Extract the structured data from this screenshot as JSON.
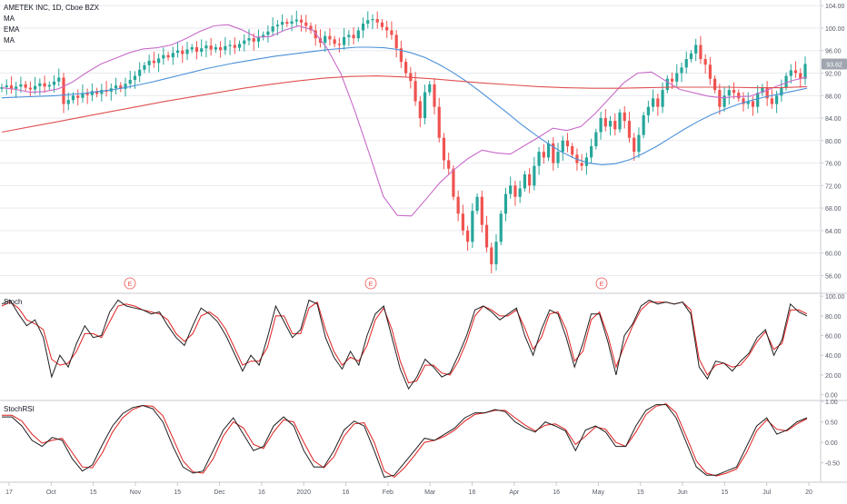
{
  "chart_data": {
    "type": "candlestick",
    "title": "AMETEK INC, 1D, Cboe BZX",
    "indicator_labels": [
      "MA",
      "EMA",
      "MA"
    ],
    "last_price_label": "93.62",
    "earnings_marker": "E",
    "x_tick_labels": [
      "17",
      "Oct",
      "15",
      "Nov",
      "15",
      "Dec",
      "16",
      "2020",
      "16",
      "Feb",
      "Mar",
      "16",
      "Apr",
      "16",
      "May",
      "15",
      "Jun",
      "15",
      "Jul",
      "20"
    ],
    "price_axis": {
      "range": [
        53,
        105
      ],
      "ticks": [
        "104.00",
        "100.00",
        "96.00",
        "92.00",
        "88.00",
        "84.00",
        "80.00",
        "76.00",
        "72.00",
        "68.00",
        "64.00",
        "60.00",
        "56.00"
      ]
    },
    "price_close": [
      89.5,
      89.8,
      89.2,
      89.6,
      90.0,
      89.4,
      89.1,
      89.7,
      90.2,
      89.6,
      89.9,
      90.5,
      91.2,
      86.5,
      87.2,
      88.0,
      87.6,
      88.4,
      88.1,
      88.8,
      88.3,
      89.0,
      88.7,
      89.3,
      89.8,
      89.2,
      90.1,
      90.8,
      91.5,
      92.6,
      93.4,
      94.2,
      93.8,
      94.6,
      95.2,
      94.8,
      95.6,
      96.0,
      95.4,
      96.2,
      96.6,
      95.8,
      96.4,
      96.9,
      96.2,
      96.6,
      96.1,
      96.8,
      97.0,
      96.5,
      97.2,
      97.8,
      98.2,
      97.6,
      98.4,
      98.8,
      99.4,
      100.3,
      100.6,
      101.1,
      100.8,
      101.2,
      101.5,
      101.0,
      100.4,
      99.6,
      98.2,
      97.4,
      98.6,
      98.0,
      97.2,
      97.0,
      98.4,
      98.8,
      98.2,
      99.6,
      100.8,
      101.4,
      101.6,
      101.0,
      100.2,
      99.6,
      98.8,
      96.4,
      94.0,
      92.0,
      90.6,
      87.0,
      84.0,
      88.6,
      90.0,
      86.0,
      80.5,
      76.5,
      75.0,
      70.0,
      67.0,
      64.0,
      62.0,
      67.5,
      70.0,
      65.0,
      61.0,
      58.0,
      62.0,
      67.0,
      70.5,
      72.0,
      70.0,
      71.5,
      74.0,
      72.0,
      75.5,
      78.0,
      77.0,
      79.5,
      76.0,
      78.0,
      80.0,
      79.0,
      77.5,
      76.0,
      75.5,
      77.0,
      79.0,
      81.5,
      84.0,
      82.5,
      83.5,
      82.0,
      85.0,
      83.5,
      80.5,
      78.0,
      81.0,
      84.5,
      86.0,
      87.5,
      86.0,
      89.0,
      91.0,
      90.5,
      92.0,
      93.0,
      94.5,
      95.5,
      97.0,
      94.5,
      93.5,
      91.0,
      89.0,
      86.0,
      88.0,
      89.0,
      88.5,
      87.5,
      86.5,
      87.0,
      86.0,
      88.5,
      89.5,
      87.5,
      86.5,
      88.0,
      89.5,
      91.5,
      92.5,
      92.0,
      91.0,
      93.62
    ],
    "series": [
      {
        "name": "MA",
        "values": [
          87.6,
          87.7,
          87.8,
          87.9,
          88.0,
          88.2,
          88.4,
          88.7,
          89.0,
          89.4,
          89.9,
          90.4,
          91.0,
          91.6,
          92.2,
          92.8,
          93.3,
          93.8,
          94.2,
          94.6,
          95.0,
          95.3,
          95.6,
          95.9,
          96.2,
          96.4,
          96.6,
          96.6,
          96.5,
          96.2,
          95.6,
          94.8,
          93.6,
          92.2,
          90.6,
          88.8,
          86.9,
          85.0,
          83.0,
          81.2,
          79.5,
          78.0,
          76.8,
          76.0,
          75.7,
          75.9,
          76.6,
          77.7,
          79.0,
          80.5,
          82.0,
          83.4,
          84.6,
          85.6,
          86.5,
          87.2,
          87.8,
          88.3,
          88.8,
          89.3
        ]
      },
      {
        "name": "EMA",
        "values": [
          89.4,
          89.1,
          88.6,
          88.7,
          89.2,
          90.4,
          92.1,
          93.6,
          94.6,
          95.6,
          96.3,
          96.5,
          97.0,
          98.1,
          99.4,
          100.4,
          100.6,
          99.7,
          98.4,
          98.5,
          99.6,
          100.4,
          99.7,
          96.5,
          91.9,
          85.2,
          77.8,
          70.1,
          66.7,
          66.6,
          69.5,
          72.5,
          74.8,
          76.8,
          78.3,
          77.8,
          77.6,
          79.1,
          80.6,
          82.2,
          81.8,
          82.5,
          84.8,
          87.5,
          90.2,
          92.0,
          92.2,
          90.6,
          89.1,
          88.5,
          87.9,
          87.6,
          87.8,
          87.9,
          88.8,
          89.8,
          90.7,
          91.3
        ]
      },
      {
        "name": "MA",
        "values": [
          81.5,
          82.4,
          83.3,
          84.2,
          85.1,
          86.0,
          86.9,
          87.7,
          88.5,
          89.3,
          90.0,
          90.6,
          91.1,
          91.4,
          91.5,
          91.3,
          91.0,
          90.6,
          90.2,
          89.9,
          89.6,
          89.4,
          89.3,
          89.3,
          89.4,
          89.5,
          89.5,
          89.5,
          89.4,
          89.4,
          89.6
        ]
      }
    ],
    "stoch": {
      "label": "Stoch",
      "range": [
        -5,
        102
      ],
      "ticks": [
        "100.00",
        "80.00",
        "60.00",
        "40.00",
        "20.00",
        "0.00"
      ],
      "k": [
        92,
        96,
        82,
        70,
        76,
        58,
        18,
        40,
        28,
        52,
        70,
        58,
        60,
        84,
        96,
        90,
        88,
        86,
        82,
        84,
        70,
        58,
        50,
        70,
        88,
        82,
        74,
        60,
        42,
        24,
        40,
        30,
        58,
        90,
        74,
        58,
        66,
        96,
        92,
        58,
        38,
        26,
        44,
        30,
        60,
        82,
        90,
        58,
        26,
        6,
        18,
        36,
        28,
        18,
        22,
        40,
        60,
        86,
        90,
        84,
        76,
        82,
        88,
        60,
        40,
        66,
        86,
        82,
        58,
        28,
        52,
        82,
        82,
        54,
        20,
        60,
        72,
        90,
        96,
        92,
        94,
        92,
        94,
        82,
        28,
        16,
        34,
        32,
        24,
        34,
        42,
        58,
        66,
        40,
        56,
        92,
        84,
        80
      ],
      "d": [
        90,
        94,
        88,
        76,
        72,
        66,
        36,
        30,
        32,
        44,
        62,
        62,
        58,
        74,
        90,
        92,
        90,
        86,
        84,
        82,
        76,
        62,
        54,
        62,
        80,
        84,
        78,
        66,
        48,
        30,
        34,
        34,
        48,
        80,
        80,
        62,
        62,
        88,
        94,
        66,
        44,
        30,
        38,
        34,
        50,
        76,
        88,
        66,
        34,
        12,
        14,
        30,
        30,
        22,
        20,
        34,
        54,
        80,
        90,
        86,
        80,
        80,
        86,
        68,
        46,
        58,
        82,
        84,
        66,
        34,
        44,
        76,
        84,
        60,
        28,
        50,
        70,
        86,
        94,
        94,
        94,
        92,
        94,
        86,
        36,
        20,
        30,
        32,
        28,
        30,
        40,
        54,
        64,
        46,
        52,
        86,
        86,
        82
      ]
    },
    "stoch_rsi": {
      "label": "StochRSI",
      "range": [
        -0.95,
        1.0
      ],
      "ticks": [
        "1.00",
        "0.50",
        "0.00",
        "-0.50"
      ],
      "k": [
        0.62,
        0.62,
        0.4,
        0.05,
        -0.1,
        0.12,
        0.05,
        -0.4,
        -0.7,
        -0.55,
        -0.05,
        0.4,
        0.7,
        0.85,
        0.9,
        0.82,
        0.5,
        -0.1,
        -0.6,
        -0.75,
        -0.7,
        -0.2,
        0.3,
        0.6,
        0.2,
        -0.2,
        -0.1,
        0.4,
        0.62,
        0.4,
        -0.2,
        -0.6,
        -0.6,
        -0.2,
        0.3,
        0.52,
        0.4,
        -0.2,
        -0.85,
        -0.8,
        -0.5,
        -0.2,
        0.1,
        0.05,
        0.2,
        0.35,
        0.6,
        0.72,
        0.72,
        0.8,
        0.75,
        0.5,
        0.35,
        0.25,
        0.5,
        0.4,
        0.28,
        -0.2,
        0.3,
        0.4,
        0.25,
        -0.1,
        -0.1,
        0.4,
        0.78,
        0.92,
        0.92,
        0.6,
        0.0,
        -0.6,
        -0.8,
        -0.8,
        -0.7,
        -0.6,
        -0.1,
        0.4,
        0.6,
        0.2,
        0.3,
        0.5,
        0.6
      ],
      "d": [
        0.66,
        0.66,
        0.52,
        0.2,
        -0.02,
        0.05,
        0.1,
        -0.25,
        -0.6,
        -0.62,
        -0.25,
        0.25,
        0.6,
        0.8,
        0.9,
        0.88,
        0.65,
        0.1,
        -0.45,
        -0.72,
        -0.75,
        -0.4,
        0.15,
        0.5,
        0.35,
        -0.05,
        -0.15,
        0.25,
        0.55,
        0.5,
        0.0,
        -0.45,
        -0.62,
        -0.35,
        0.15,
        0.45,
        0.48,
        0.0,
        -0.7,
        -0.85,
        -0.62,
        -0.32,
        0.0,
        0.05,
        0.15,
        0.3,
        0.52,
        0.68,
        0.72,
        0.78,
        0.78,
        0.6,
        0.42,
        0.28,
        0.42,
        0.45,
        0.32,
        -0.05,
        0.15,
        0.38,
        0.32,
        0.0,
        -0.1,
        0.25,
        0.68,
        0.88,
        0.94,
        0.72,
        0.15,
        -0.45,
        -0.75,
        -0.82,
        -0.75,
        -0.65,
        -0.25,
        0.28,
        0.55,
        0.32,
        0.28,
        0.45,
        0.58
      ]
    }
  },
  "colors": {
    "up": "#26a69a",
    "down": "#ef5350",
    "ma_slow": "#e05050",
    "ema": "#c86ac8",
    "ma_mid": "#4a90d9",
    "stoch_k": "#1f1f1f",
    "stoch_d": "#e02020",
    "grid": "#e8eaf0",
    "axis_text": "#555a66",
    "divider": "#c8cad0",
    "price_label_bg": "#a0a5b0"
  }
}
